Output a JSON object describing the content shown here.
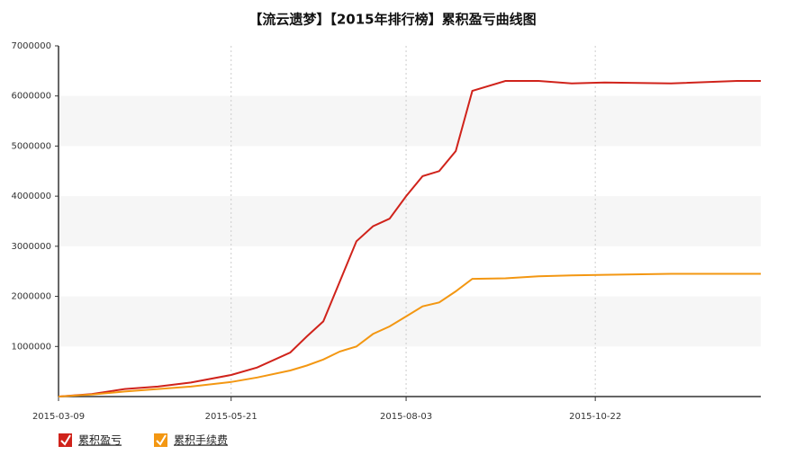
{
  "chart_data": {
    "type": "line",
    "title": "【流云遗梦】【2015年排行榜】累积盈亏曲线图",
    "x": [
      "2015-03-09",
      "2015-03-23",
      "2015-04-06",
      "2015-04-20",
      "2015-05-04",
      "2015-05-21",
      "2015-06-01",
      "2015-06-15",
      "2015-06-22",
      "2015-06-29",
      "2015-07-06",
      "2015-07-13",
      "2015-07-20",
      "2015-07-27",
      "2015-08-03",
      "2015-08-10",
      "2015-08-17",
      "2015-08-24",
      "2015-08-31",
      "2015-09-14",
      "2015-09-28",
      "2015-10-12",
      "2015-10-26",
      "2015-11-23",
      "2015-12-21",
      "2015-12-31"
    ],
    "series": [
      {
        "name": "累积盈亏",
        "color": "#d0231b",
        "values": [
          0,
          50000,
          150000,
          200000,
          280000,
          430000,
          580000,
          880000,
          1200000,
          1500000,
          2300000,
          3100000,
          3400000,
          3550000,
          4000000,
          4400000,
          4500000,
          4900000,
          6100000,
          6300000,
          6300000,
          6250000,
          6270000,
          6250000,
          6300000,
          6300000
        ]
      },
      {
        "name": "累积手续费",
        "color": "#f39712",
        "values": [
          0,
          40000,
          100000,
          150000,
          200000,
          290000,
          380000,
          520000,
          620000,
          740000,
          900000,
          1000000,
          1250000,
          1400000,
          1600000,
          1800000,
          1880000,
          2100000,
          2350000,
          2360000,
          2400000,
          2420000,
          2430000,
          2450000,
          2450000,
          2450000
        ]
      }
    ],
    "xlim": [
      "2015-03-09",
      "2015-12-31"
    ],
    "xticks": [
      "2015-03-09",
      "2015-05-21",
      "2015-08-03",
      "2015-10-22"
    ],
    "ylim": [
      0,
      7000000
    ],
    "yticks": [
      1000000,
      2000000,
      3000000,
      4000000,
      5000000,
      6000000,
      7000000
    ],
    "grid": true,
    "legend": "bottom-left"
  }
}
